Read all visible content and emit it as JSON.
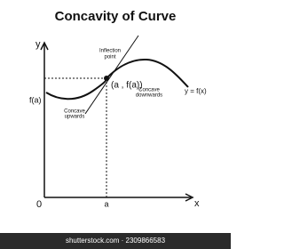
{
  "title": "Concavity of Curve",
  "axes": {
    "y_label": "y",
    "x_label": "x",
    "origin": "0",
    "a_label": "a",
    "fa_label": "f(a)"
  },
  "annotations": {
    "inflection": [
      "Inflection",
      "point"
    ],
    "point": "(a , f(a))",
    "concave_up": [
      "Concave",
      "upwards"
    ],
    "concave_down": [
      "Concave",
      "downwards"
    ],
    "curve": "y = f(x)"
  },
  "footer": "shutterstock.com · 2309866583"
}
